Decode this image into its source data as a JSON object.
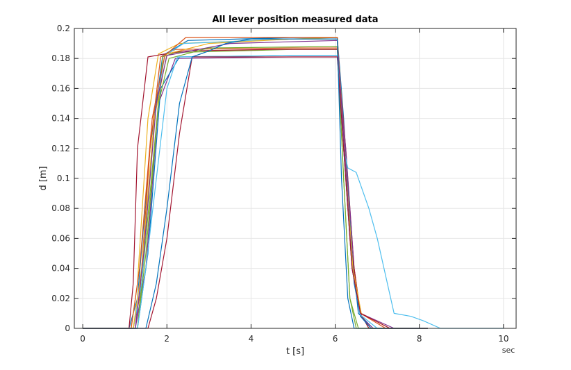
{
  "chart_data": {
    "type": "line",
    "title": "All lever position measured data",
    "xlabel": "t [s]",
    "ylabel": "d [m]",
    "x_unit_label": "sec",
    "xlim": [
      -0.2,
      10.3
    ],
    "ylim": [
      0,
      0.2
    ],
    "xticks": [
      "0",
      "2",
      "4",
      "6",
      "8",
      "10"
    ],
    "yticks": [
      "0",
      "0.02",
      "0.04",
      "0.06",
      "0.08",
      "0.1",
      "0.12",
      "0.14",
      "0.16",
      "0.18",
      "0.2"
    ],
    "grid": true,
    "colors": [
      "#0072BD",
      "#D95319",
      "#EDB120",
      "#7E2F8E",
      "#77AC30",
      "#4DBEEE",
      "#A2142F"
    ],
    "series": [
      {
        "x": [
          0,
          1.1,
          1.3,
          1.6,
          1.9,
          2.5,
          5.0,
          6.05,
          6.2,
          6.4,
          6.55,
          6.9,
          8.2
        ],
        "y": [
          0,
          0,
          0.02,
          0.12,
          0.182,
          0.192,
          0.194,
          0.194,
          0.14,
          0.05,
          0.01,
          0,
          0
        ]
      },
      {
        "x": [
          0,
          1.2,
          1.35,
          1.6,
          1.85,
          2.2,
          5.0,
          6.05,
          6.25,
          6.45,
          6.6,
          6.85,
          8.2
        ],
        "y": [
          0,
          0,
          0.02,
          0.12,
          0.181,
          0.186,
          0.187,
          0.187,
          0.12,
          0.04,
          0.009,
          0,
          0
        ]
      },
      {
        "x": [
          0,
          1.15,
          1.3,
          1.55,
          1.8,
          2.3,
          5.0,
          6.05,
          6.2,
          6.4,
          6.6,
          6.8,
          8.2
        ],
        "y": [
          0,
          0,
          0.03,
          0.14,
          0.183,
          0.19,
          0.193,
          0.194,
          0.13,
          0.05,
          0.01,
          0,
          0
        ]
      },
      {
        "x": [
          0,
          1.25,
          1.5,
          1.8,
          2.2,
          5.0,
          6.05,
          6.25,
          6.45,
          6.6,
          6.9,
          8.2
        ],
        "y": [
          0,
          0,
          0.04,
          0.15,
          0.18,
          0.181,
          0.181,
          0.12,
          0.04,
          0.008,
          0,
          0
        ]
      },
      {
        "x": [
          0,
          1.3,
          1.6,
          1.9,
          2.2,
          5.0,
          6.05,
          6.2,
          6.35,
          6.5,
          8.2
        ],
        "y": [
          0,
          0,
          0.09,
          0.181,
          0.184,
          0.186,
          0.186,
          0.1,
          0.02,
          0,
          0
        ]
      },
      {
        "x": [
          0,
          1.2,
          1.4,
          1.7,
          1.95,
          2.4,
          5.0,
          6.05,
          6.2,
          6.3,
          6.5,
          6.8,
          7.0,
          7.4,
          7.8,
          8.1,
          8.5,
          10.0
        ],
        "y": [
          0,
          0,
          0.03,
          0.14,
          0.182,
          0.19,
          0.193,
          0.193,
          0.12,
          0.107,
          0.104,
          0.08,
          0.06,
          0.01,
          0.008,
          0.005,
          0,
          0
        ]
      },
      {
        "x": [
          0,
          1.1,
          1.2,
          1.3,
          1.55,
          1.95,
          2.4,
          4.5,
          6.05,
          6.2,
          6.4,
          6.6,
          6.8,
          8.2
        ],
        "y": [
          0,
          0,
          0.03,
          0.12,
          0.181,
          0.183,
          0.185,
          0.186,
          0.186,
          0.12,
          0.05,
          0.01,
          0,
          0
        ]
      },
      {
        "x": [
          0,
          1.3,
          1.55,
          1.85,
          2.3,
          5.0,
          6.05,
          6.25,
          6.45,
          6.6,
          6.85,
          8.2
        ],
        "y": [
          0,
          0,
          0.05,
          0.16,
          0.181,
          0.182,
          0.182,
          0.11,
          0.03,
          0.008,
          0,
          0
        ]
      },
      {
        "x": [
          0,
          1.15,
          1.35,
          1.65,
          1.95,
          2.45,
          5.0,
          6.05,
          6.2,
          6.4,
          6.6,
          7.2,
          8.2
        ],
        "y": [
          0,
          0,
          0.04,
          0.14,
          0.182,
          0.194,
          0.194,
          0.194,
          0.12,
          0.04,
          0.01,
          0,
          0
        ]
      },
      {
        "x": [
          0,
          1.2,
          1.4,
          1.7,
          2.0,
          3.0,
          5.0,
          6.05,
          6.22,
          6.42,
          6.62,
          7.3,
          8.2
        ],
        "y": [
          0,
          0,
          0.04,
          0.14,
          0.183,
          0.19,
          0.193,
          0.193,
          0.12,
          0.04,
          0.01,
          0,
          0
        ]
      },
      {
        "x": [
          0,
          1.25,
          1.45,
          1.75,
          2.0,
          3.5,
          6.05,
          6.22,
          6.4,
          6.6,
          7.4,
          8.2
        ],
        "y": [
          0,
          0,
          0.05,
          0.15,
          0.182,
          0.19,
          0.192,
          0.12,
          0.04,
          0.01,
          0,
          0
        ]
      },
      {
        "x": [
          0,
          1.3,
          1.5,
          1.8,
          2.05,
          3.0,
          6.05,
          6.2,
          6.35,
          6.55,
          8.2
        ],
        "y": [
          0,
          0,
          0.05,
          0.15,
          0.18,
          0.187,
          0.188,
          0.1,
          0.02,
          0,
          0
        ]
      },
      {
        "x": [
          0,
          1.3,
          1.5,
          1.75,
          2.0,
          2.25,
          5.0,
          6.05,
          6.2,
          6.4,
          6.6,
          7.0,
          8.2
        ],
        "y": [
          0,
          0,
          0.04,
          0.1,
          0.16,
          0.181,
          0.182,
          0.182,
          0.12,
          0.04,
          0.009,
          0,
          0
        ]
      },
      {
        "x": [
          0,
          1.55,
          1.75,
          2.0,
          2.3,
          2.6,
          5.0,
          6.05,
          6.2,
          6.4,
          6.6,
          7.3,
          8.2
        ],
        "y": [
          0,
          0,
          0.02,
          0.06,
          0.13,
          0.181,
          0.181,
          0.181,
          0.12,
          0.04,
          0.01,
          0,
          0
        ]
      },
      {
        "x": [
          0,
          1.5,
          1.75,
          2.0,
          2.3,
          2.6,
          3.0,
          3.4,
          4.0,
          6.05,
          6.15,
          6.3,
          6.45,
          6.6,
          8.2
        ],
        "y": [
          0,
          0,
          0.03,
          0.08,
          0.15,
          0.181,
          0.185,
          0.19,
          0.193,
          0.193,
          0.1,
          0.02,
          0,
          0,
          0
        ]
      }
    ]
  }
}
